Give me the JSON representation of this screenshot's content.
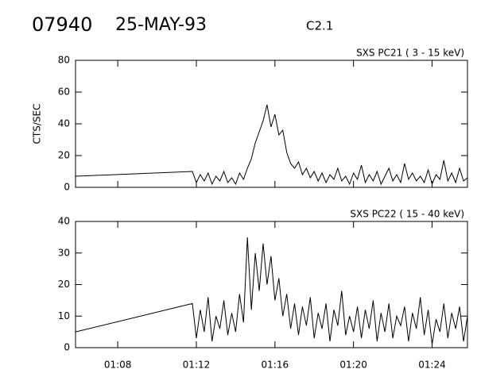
{
  "header": {
    "id": "07940",
    "date": "25-MAY-93",
    "class": "C2.1"
  },
  "chart_data": [
    {
      "type": "line",
      "title": "SXS PC21  (  3 - 15 keV)",
      "y_label": "CTS/SEC",
      "color": "#000000",
      "xlim": [
        5.85,
        25.8
      ],
      "ylim": [
        0,
        80
      ],
      "yticks": [
        0,
        20,
        40,
        60,
        80
      ],
      "x": [
        5.85,
        11.8,
        12.0,
        12.2,
        12.4,
        12.6,
        12.8,
        13.0,
        13.2,
        13.4,
        13.6,
        13.8,
        14.0,
        14.2,
        14.4,
        14.6,
        14.8,
        15.0,
        15.2,
        15.4,
        15.6,
        15.8,
        16.0,
        16.2,
        16.4,
        16.6,
        16.8,
        17.0,
        17.2,
        17.4,
        17.6,
        17.8,
        18.0,
        18.2,
        18.4,
        18.6,
        18.8,
        19.0,
        19.2,
        19.4,
        19.6,
        19.8,
        20.0,
        20.2,
        20.4,
        20.6,
        20.8,
        21.0,
        21.2,
        21.4,
        21.6,
        21.8,
        22.0,
        22.2,
        22.4,
        22.6,
        22.8,
        23.0,
        23.2,
        23.4,
        23.6,
        23.8,
        24.0,
        24.2,
        24.4,
        24.6,
        24.8,
        25.0,
        25.2,
        25.4,
        25.6,
        25.8
      ],
      "values": [
        7,
        10,
        3,
        8,
        4,
        9,
        2,
        7,
        4,
        10,
        3,
        6,
        2,
        9,
        5,
        12,
        18,
        28,
        35,
        42,
        52,
        38,
        46,
        33,
        36,
        22,
        15,
        12,
        16,
        8,
        12,
        6,
        10,
        4,
        9,
        3,
        8,
        5,
        12,
        4,
        7,
        2,
        9,
        5,
        14,
        3,
        8,
        4,
        10,
        2,
        7,
        12,
        4,
        8,
        3,
        15,
        5,
        9,
        4,
        7,
        3,
        11,
        2,
        8,
        5,
        17,
        4,
        9,
        3,
        12,
        4,
        6
      ]
    },
    {
      "type": "line",
      "title": "SXS PC22  ( 15 - 40 keV)",
      "color": "#000000",
      "xlim": [
        5.85,
        25.8
      ],
      "ylim": [
        0,
        40
      ],
      "yticks": [
        0,
        10,
        20,
        30,
        40
      ],
      "xticks": [
        {
          "value": 8,
          "label": "01:08"
        },
        {
          "value": 12,
          "label": "01:12"
        },
        {
          "value": 16,
          "label": "01:16"
        },
        {
          "value": 20,
          "label": "01:20"
        },
        {
          "value": 24,
          "label": "01:24"
        }
      ],
      "x": [
        5.85,
        11.8,
        12.0,
        12.2,
        12.4,
        12.6,
        12.8,
        13.0,
        13.2,
        13.4,
        13.6,
        13.8,
        14.0,
        14.2,
        14.4,
        14.6,
        14.8,
        15.0,
        15.2,
        15.4,
        15.6,
        15.8,
        16.0,
        16.2,
        16.4,
        16.6,
        16.8,
        17.0,
        17.2,
        17.4,
        17.6,
        17.8,
        18.0,
        18.2,
        18.4,
        18.6,
        18.8,
        19.0,
        19.2,
        19.4,
        19.6,
        19.8,
        20.0,
        20.2,
        20.4,
        20.6,
        20.8,
        21.0,
        21.2,
        21.4,
        21.6,
        21.8,
        22.0,
        22.2,
        22.4,
        22.6,
        22.8,
        23.0,
        23.2,
        23.4,
        23.6,
        23.8,
        24.0,
        24.2,
        24.4,
        24.6,
        24.8,
        25.0,
        25.2,
        25.4,
        25.6,
        25.8
      ],
      "values": [
        5,
        14,
        3,
        12,
        5,
        16,
        2,
        10,
        6,
        15,
        4,
        11,
        5,
        17,
        8,
        35,
        12,
        30,
        18,
        33,
        20,
        29,
        15,
        22,
        10,
        17,
        6,
        14,
        4,
        13,
        7,
        16,
        3,
        11,
        6,
        14,
        2,
        12,
        7,
        18,
        4,
        10,
        5,
        13,
        3,
        12,
        6,
        15,
        2,
        11,
        5,
        14,
        3,
        10,
        7,
        13,
        2,
        11,
        6,
        16,
        4,
        12,
        1,
        9,
        5,
        14,
        3,
        11,
        6,
        13,
        2,
        10
      ]
    }
  ]
}
